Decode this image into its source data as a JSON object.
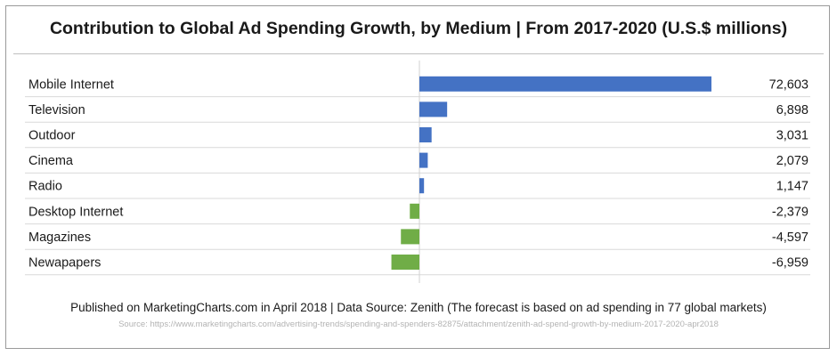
{
  "chart_data": {
    "type": "bar",
    "orientation": "horizontal",
    "title": "Contribution to Global Ad Spending Growth, by Medium | From 2017-2020 (U.S.$ millions)",
    "categories": [
      "Mobile Internet",
      "Television",
      "Outdoor",
      "Cinema",
      "Radio",
      "Desktop Internet",
      "Magazines",
      "Newapapers"
    ],
    "values": [
      72603,
      6898,
      3031,
      2079,
      1147,
      -2379,
      -4597,
      -6959
    ],
    "value_labels": [
      "72,603",
      "6,898",
      "3,031",
      "2,079",
      "1,147",
      "-2,379",
      "-4,597",
      "-6,959"
    ],
    "positive_color": "#4472C4",
    "negative_color": "#70AD47",
    "grid": true
  },
  "footer": {
    "published": "Published on MarketingCharts.com in April 2018 | Data Source: Zenith (The forecast is based on ad spending in 77 global markets)",
    "source": "Source: https://www.marketingcharts.com/advertising-trends/spending-and-spenders-82875/attachment/zenith-ad-spend-growth-by-medium-2017-2020-apr2018"
  }
}
